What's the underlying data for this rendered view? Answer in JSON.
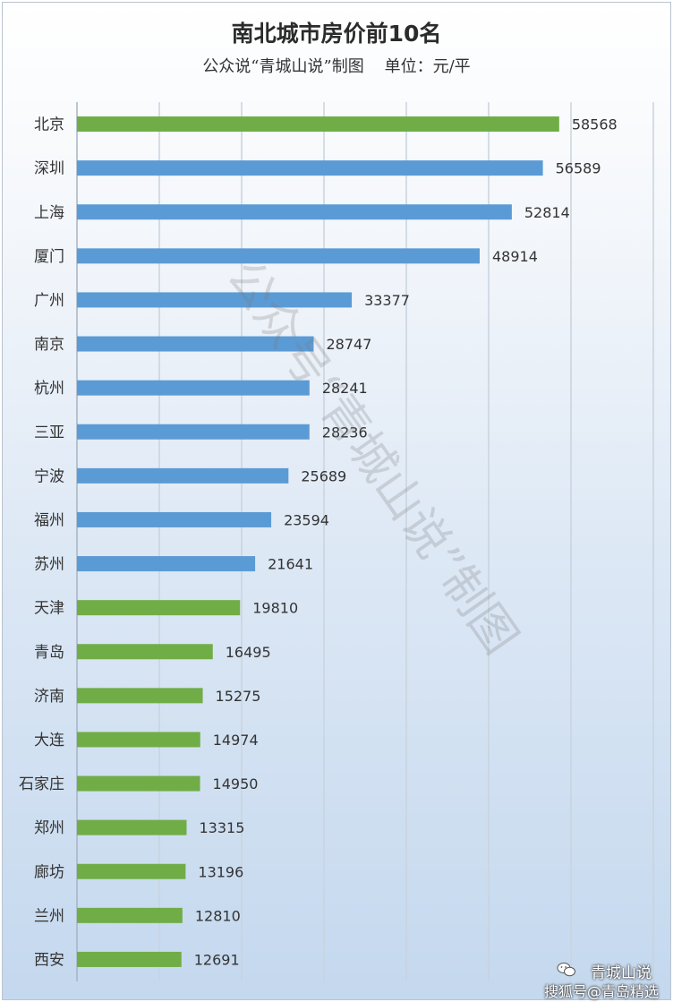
{
  "chart_data": {
    "type": "bar",
    "orientation": "horizontal",
    "title": "南北城市房价前10名",
    "subtitle": "公众说“青城山说”制图    单位：元/平",
    "categories": [
      "北京",
      "深圳",
      "上海",
      "厦门",
      "广州",
      "南京",
      "杭州",
      "三亚",
      "宁波",
      "福州",
      "苏州",
      "天津",
      "青岛",
      "济南",
      "大连",
      "石家庄",
      "郑州",
      "廊坊",
      "兰州",
      "西安"
    ],
    "values": [
      58568,
      56589,
      52814,
      48914,
      33377,
      28747,
      28241,
      28236,
      25689,
      23594,
      21641,
      19810,
      16495,
      15275,
      14974,
      14950,
      13315,
      13196,
      12810,
      12691
    ],
    "bar_colors": [
      "#70ad47",
      "#5b9bd5",
      "#5b9bd5",
      "#5b9bd5",
      "#5b9bd5",
      "#5b9bd5",
      "#5b9bd5",
      "#5b9bd5",
      "#5b9bd5",
      "#5b9bd5",
      "#5b9bd5",
      "#70ad47",
      "#70ad47",
      "#70ad47",
      "#70ad47",
      "#70ad47",
      "#70ad47",
      "#70ad47",
      "#70ad47",
      "#70ad47"
    ],
    "xlim": [
      0,
      70000
    ],
    "grid": true,
    "legend": "none"
  },
  "watermark": "公众号“青城山说”制图",
  "credits": {
    "top": "青城山说",
    "bottom": "搜狐号@青岛精选"
  },
  "icons": {
    "credit": "wechat-icon"
  }
}
